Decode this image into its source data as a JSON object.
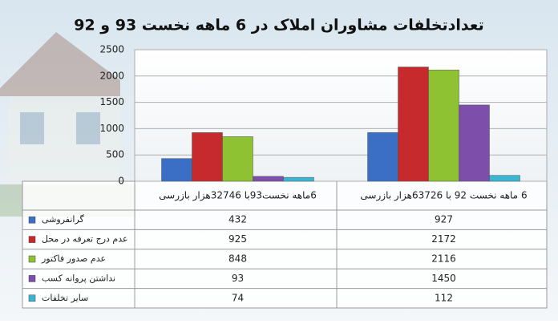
{
  "chart_data": {
    "type": "bar",
    "title": "تعدادتخلفات مشاوران املاک در 6 ماهه نخست 93 و 92",
    "categories": [
      "6ماهه نخست93با 32746هزار بازرسی",
      "6 ماهه نخست 92 با 63726هزار بازرسی"
    ],
    "series": [
      {
        "name": "گرانفروشی",
        "color": "#3b6fc6",
        "values": [
          432,
          927
        ]
      },
      {
        "name": "عدم درج تعرفه در محل",
        "color": "#c62a2c",
        "values": [
          925,
          2172
        ]
      },
      {
        "name": "عدم صدور فاکتور",
        "color": "#8fc232",
        "values": [
          848,
          2116
        ]
      },
      {
        "name": "نداشتن پروانه کسب",
        "color": "#7d4fab",
        "values": [
          93,
          1450
        ]
      },
      {
        "name": "سایر تخلفات",
        "color": "#3ab6d2",
        "values": [
          74,
          112
        ]
      }
    ],
    "ylim": [
      0,
      2500
    ],
    "yticks": [
      0,
      500,
      1000,
      1500,
      2000,
      2500
    ],
    "grid": true
  }
}
